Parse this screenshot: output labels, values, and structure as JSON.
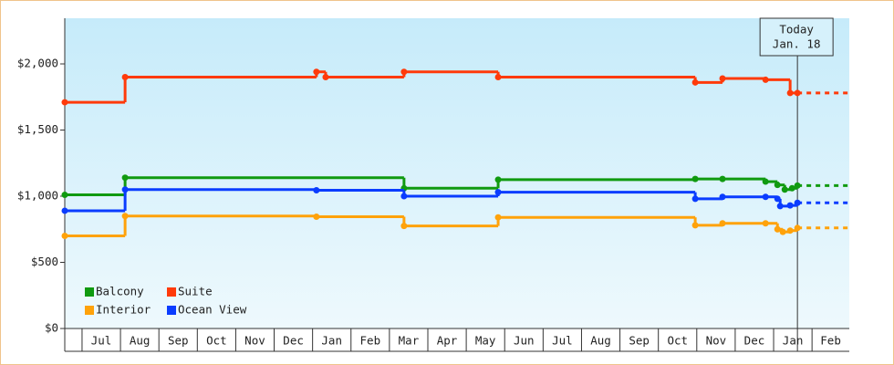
{
  "chart_data": {
    "type": "step-line",
    "categories": [
      null,
      "Jul",
      "Aug",
      "Sep",
      "Oct",
      "Nov",
      "Dec",
      "Jan",
      "Feb",
      "Mar",
      "Apr",
      "May",
      "Jun",
      "Jul",
      "Aug",
      "Sep",
      "Oct",
      "Nov",
      "Dec",
      "Jan",
      "Feb"
    ],
    "xlim": [
      -0.45,
      19.97
    ],
    "ylim": [
      0,
      2345
    ],
    "yticks": [
      {
        "value": 0,
        "label": "$0"
      },
      {
        "value": 500,
        "label": "$500"
      },
      {
        "value": 1000,
        "label": "$1,000"
      },
      {
        "value": 1500,
        "label": "$1,500"
      },
      {
        "value": 2000,
        "label": "$2,000"
      }
    ],
    "today": {
      "x": 18.62,
      "label": [
        "Today",
        "Jan. 18"
      ]
    },
    "series": [
      {
        "name": "Balcony",
        "color": "#109a10",
        "x": [
          -0.45,
          1.12,
          8.38,
          10.83,
          15.96,
          16.67,
          17.79,
          18.1,
          18.29,
          18.48,
          18.62
        ],
        "values": [
          1010,
          1140,
          1060,
          1125,
          1130,
          1130,
          1110,
          1085,
          1050,
          1060,
          1080
        ]
      },
      {
        "name": "Suite",
        "color": "#ff3a0a",
        "x": [
          -0.45,
          1.12,
          6.1,
          6.34,
          8.38,
          10.83,
          15.96,
          16.67,
          17.79,
          18.43,
          18.62
        ],
        "values": [
          1710,
          1900,
          1940,
          1900,
          1940,
          1900,
          1860,
          1890,
          1880,
          1780,
          1780
        ]
      },
      {
        "name": "Interior",
        "color": "#ffa20a",
        "x": [
          -0.45,
          1.12,
          6.1,
          8.38,
          10.83,
          15.96,
          16.67,
          17.79,
          18.1,
          18.24,
          18.43,
          18.62
        ],
        "values": [
          700,
          850,
          845,
          775,
          840,
          780,
          795,
          795,
          750,
          730,
          740,
          760
        ]
      },
      {
        "name": "Ocean View",
        "color": "#0a3cff",
        "x": [
          -0.45,
          1.12,
          6.1,
          8.38,
          10.83,
          15.96,
          16.67,
          17.79,
          18.1,
          18.17,
          18.43,
          18.62
        ],
        "values": [
          890,
          1050,
          1045,
          1000,
          1030,
          980,
          995,
          995,
          980,
          925,
          930,
          950
        ]
      }
    ]
  }
}
